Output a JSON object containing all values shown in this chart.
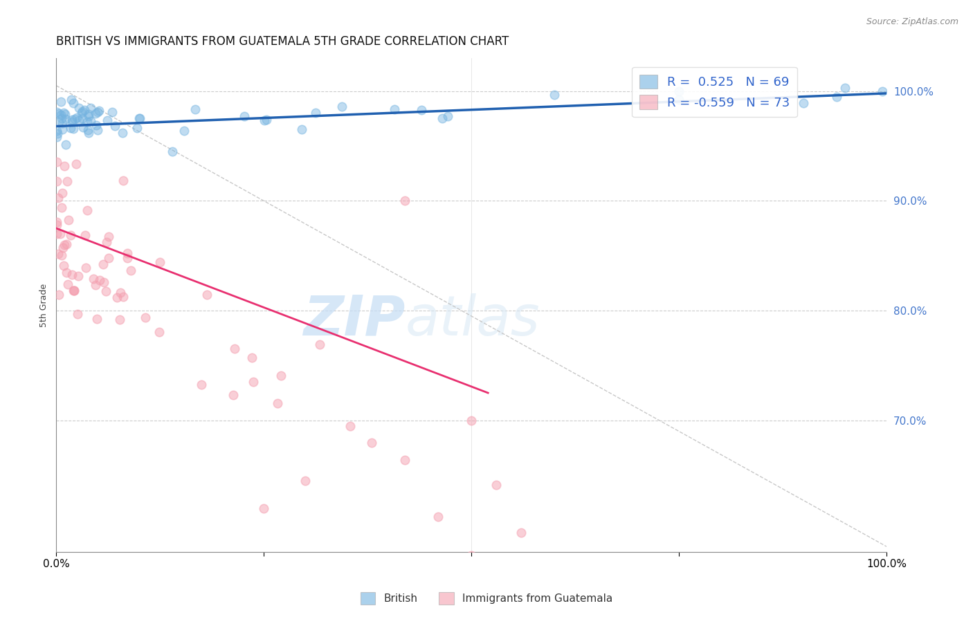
{
  "title": "BRITISH VS IMMIGRANTS FROM GUATEMALA 5TH GRADE CORRELATION CHART",
  "source": "Source: ZipAtlas.com",
  "ylabel": "5th Grade",
  "right_yticks": [
    70.0,
    80.0,
    90.0,
    100.0
  ],
  "legend_r1": "R =  0.525",
  "legend_n1": "N = 69",
  "legend_r2": "R = -0.559",
  "legend_n2": "N = 73",
  "british_color": "#74b3e0",
  "guatemala_color": "#f4a0b0",
  "trend_blue_color": "#2060b0",
  "trend_pink_color": "#e83070",
  "diagonal_color": "#c8c8c8",
  "watermark_zip": "ZIP",
  "watermark_atlas": "atlas",
  "ylim_min": 58.0,
  "ylim_max": 103.0,
  "xlim_min": 0.0,
  "xlim_max": 100.0,
  "brit_trend_x0": 0.0,
  "brit_trend_y0": 96.8,
  "brit_trend_x1": 100.0,
  "brit_trend_y1": 99.8,
  "guat_trend_x0": 0.0,
  "guat_trend_y0": 87.5,
  "guat_trend_x1": 52.0,
  "guat_trend_y1": 72.5,
  "diag_x0": 0.0,
  "diag_y0": 100.5,
  "diag_x1": 100.0,
  "diag_y1": 58.5
}
